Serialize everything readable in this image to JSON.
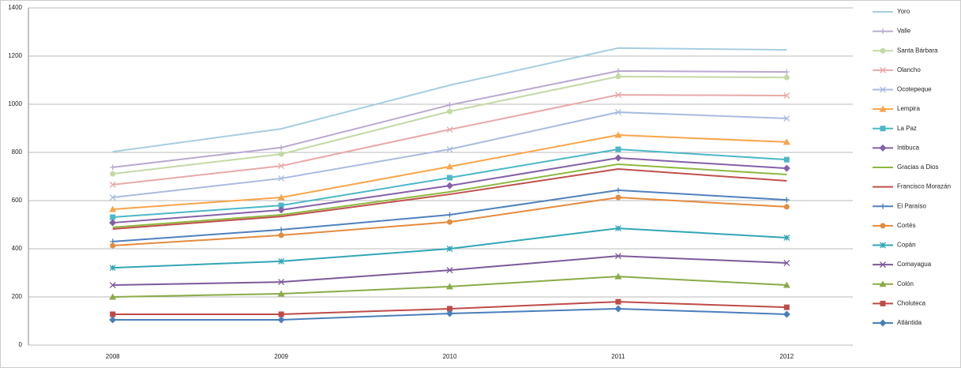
{
  "chart_data": {
    "type": "line",
    "categories": [
      "2008",
      "2009",
      "2010",
      "2011",
      "2012"
    ],
    "ylim": [
      0,
      1400
    ],
    "yticks": [
      0,
      200,
      400,
      600,
      800,
      1000,
      1200,
      1400
    ],
    "grid": true,
    "legend": "right",
    "series": [
      {
        "name": "Yoro",
        "color": "#a6cee0",
        "marker": "none",
        "values": [
          803,
          898,
          1079,
          1233,
          1226
        ]
      },
      {
        "name": "Valle",
        "color": "#b9a9d0",
        "marker": "plus",
        "values": [
          738,
          820,
          997,
          1138,
          1134
        ]
      },
      {
        "name": "Santa Bárbara",
        "color": "#c4d9a6",
        "marker": "circle",
        "values": [
          711,
          793,
          970,
          1115,
          1111
        ]
      },
      {
        "name": "Olancho",
        "color": "#e8a9a8",
        "marker": "x",
        "values": [
          666,
          744,
          895,
          1039,
          1036
        ]
      },
      {
        "name": "Ocotepeque",
        "color": "#a9bbe0",
        "marker": "x",
        "values": [
          613,
          692,
          813,
          967,
          941
        ]
      },
      {
        "name": "Lempira",
        "color": "#f7a54a",
        "marker": "triangle",
        "values": [
          564,
          613,
          741,
          872,
          843
        ]
      },
      {
        "name": "La Paz",
        "color": "#4bb8c6",
        "marker": "square",
        "values": [
          531,
          580,
          695,
          813,
          770
        ]
      },
      {
        "name": "Intibuca",
        "color": "#8560a8",
        "marker": "diamond",
        "values": [
          508,
          561,
          662,
          777,
          734
        ]
      },
      {
        "name": "Gracias a Dios",
        "color": "#8db83f",
        "marker": "none",
        "values": [
          489,
          541,
          636,
          751,
          708
        ]
      },
      {
        "name": "Francisco Morazán",
        "color": "#c0504d",
        "marker": "none",
        "values": [
          482,
          534,
          626,
          731,
          682
        ]
      },
      {
        "name": "El Paraíso",
        "color": "#4f81bd",
        "marker": "plus",
        "values": [
          430,
          479,
          541,
          643,
          603
        ]
      },
      {
        "name": "Cortés",
        "color": "#e48b3e",
        "marker": "circle",
        "values": [
          413,
          456,
          511,
          613,
          574
        ]
      },
      {
        "name": "Copán",
        "color": "#31a6b5",
        "marker": "star",
        "values": [
          321,
          348,
          400,
          485,
          446
        ]
      },
      {
        "name": "Comayagua",
        "color": "#7c5a9a",
        "marker": "x",
        "values": [
          249,
          262,
          311,
          370,
          341
        ]
      },
      {
        "name": "Colón",
        "color": "#8aab47",
        "marker": "triangle",
        "values": [
          200,
          213,
          243,
          285,
          249
        ]
      },
      {
        "name": "Choluteca",
        "color": "#be4b48",
        "marker": "square",
        "values": [
          128,
          128,
          151,
          180,
          157
        ]
      },
      {
        "name": "Atlántida",
        "color": "#4a7ebb",
        "marker": "diamond",
        "values": [
          105,
          105,
          131,
          151,
          128
        ]
      }
    ]
  }
}
